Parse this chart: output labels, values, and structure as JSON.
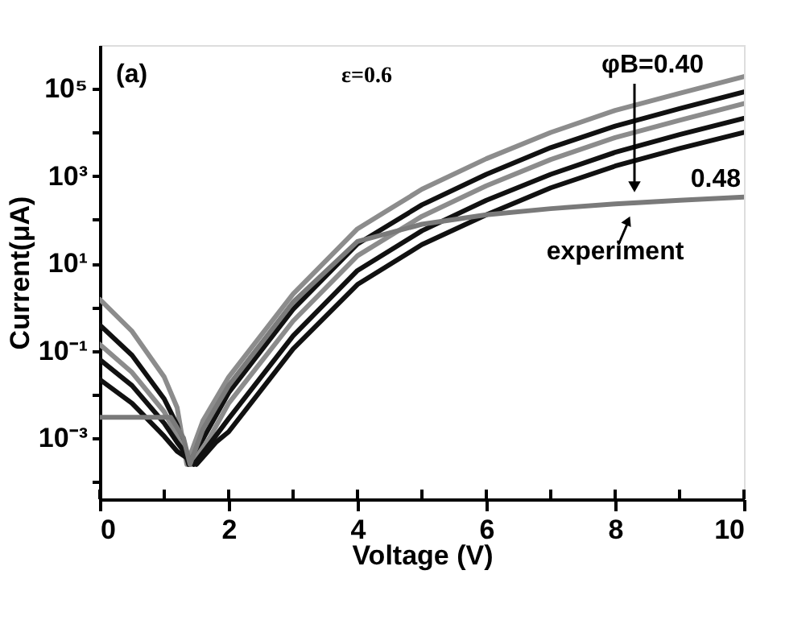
{
  "chart_data": {
    "type": "line",
    "xlabel": "Voltage (V)",
    "ylabel": "Current(μA)",
    "log": "y",
    "grid": false,
    "marker": "none",
    "line_style": "solid",
    "xlim": [
      0,
      10
    ],
    "xticks": [
      0,
      {
        "value": 1,
        "label": null
      },
      2,
      {
        "value": 3,
        "label": null
      },
      4,
      {
        "value": 5,
        "label": null
      },
      6,
      {
        "value": 7,
        "label": null
      },
      8,
      {
        "value": 9,
        "label": null
      },
      10
    ],
    "ylim": [
      4e-05,
      1000000
    ],
    "yticks": [
      {
        "value": 0.0001,
        "label": null
      },
      {
        "value": 0.001,
        "label": "10⁻³"
      },
      {
        "value": 0.01,
        "label": null
      },
      {
        "value": 0.1,
        "label": "10⁻¹"
      },
      {
        "value": 1,
        "label": null
      },
      {
        "value": 10,
        "label": "10¹"
      },
      {
        "value": 100,
        "label": null
      },
      {
        "value": 1000,
        "label": "10³"
      },
      {
        "value": 10000,
        "label": null
      },
      {
        "value": 100000,
        "label": "10⁵"
      }
    ],
    "annotations": [
      "(a)",
      "ε=0.6",
      "φB=0.40",
      "0.48",
      "experiment"
    ],
    "series": [
      {
        "color": "#8c8c8c",
        "x": [
          0,
          0.5,
          1,
          1.2,
          1.35,
          1.6,
          2,
          3,
          4,
          5,
          6,
          7,
          8,
          9,
          10
        ],
        "values": [
          1.5,
          0.28,
          0.025,
          0.005,
          0.00025,
          0.0025,
          0.025,
          2,
          62,
          500,
          2500,
          10000,
          32000,
          79000,
          190000
        ]
      },
      {
        "color": "#111111",
        "x": [
          0,
          0.5,
          1,
          1.2,
          1.38,
          1.65,
          2,
          3,
          4,
          5,
          6,
          7,
          8,
          9,
          10
        ],
        "values": [
          0.39,
          0.079,
          0.0079,
          0.002,
          0.00025,
          0.0013,
          0.011,
          0.89,
          28,
          220,
          1100,
          4500,
          14000,
          35000,
          85000
        ]
      },
      {
        "color": "#8c8c8c",
        "x": [
          0,
          0.5,
          1,
          1.2,
          1.42,
          1.7,
          2,
          3,
          4,
          5,
          6,
          7,
          8,
          9,
          10
        ],
        "values": [
          0.14,
          0.032,
          0.004,
          0.0011,
          0.00025,
          0.001,
          0.0063,
          0.48,
          15,
          120,
          600,
          2400,
          7600,
          19000,
          46000
        ]
      },
      {
        "color": "#111111",
        "x": [
          0,
          0.5,
          1,
          1.2,
          1.46,
          1.75,
          2,
          3,
          4,
          5,
          6,
          7,
          8,
          9,
          10
        ],
        "values": [
          0.063,
          0.016,
          0.0022,
          0.0008,
          0.00025,
          0.0009,
          0.0028,
          0.22,
          6.9,
          56,
          280,
          1100,
          3500,
          8900,
          21000
        ]
      },
      {
        "color": "#111111",
        "x": [
          0,
          0.5,
          1,
          1.2,
          1.5,
          1.8,
          2,
          3,
          4,
          5,
          6,
          7,
          8,
          9,
          10
        ],
        "values": [
          0.022,
          0.0063,
          0.0011,
          0.0005,
          0.00025,
          0.0008,
          0.0014,
          0.11,
          3.3,
          27,
          130,
          540,
          1700,
          4300,
          10000
        ]
      },
      {
        "color": "#7a7a7a",
        "x": [
          0,
          1.1,
          1.3,
          1.4,
          1.6,
          2,
          3,
          4,
          5,
          6,
          7,
          8,
          9,
          10
        ],
        "values": [
          0.003,
          0.003,
          0.001,
          0.00025,
          0.0016,
          0.016,
          1.3,
          32,
          79,
          130,
          180,
          230,
          280,
          330
        ]
      }
    ]
  }
}
